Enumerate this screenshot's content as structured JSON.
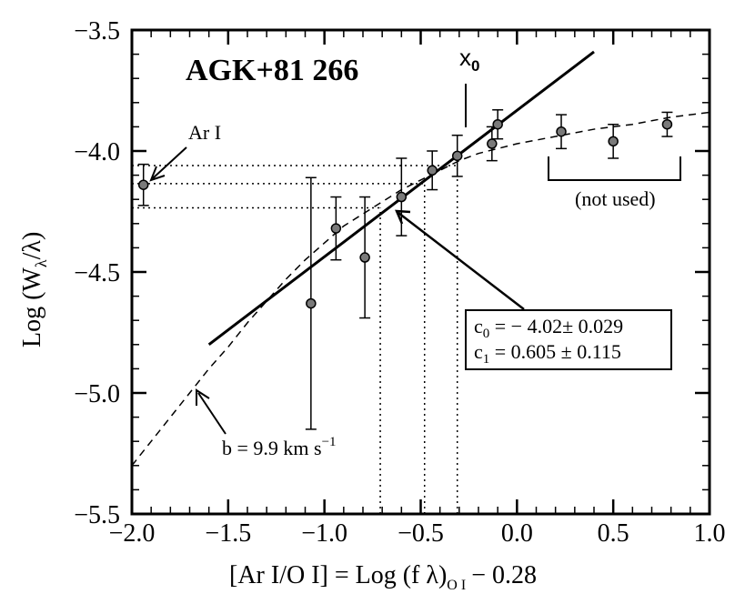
{
  "chart_data": {
    "type": "scatter",
    "title": "AGK+81 266",
    "xlabel": {
      "main": "[Ar I/O I] = Log (f  λ)",
      "sub": "O I",
      "tail": "− 0.28"
    },
    "ylabel": {
      "pre": "Log (W",
      "sub": "λ",
      "post": "/λ)"
    },
    "xlim": [
      -2.0,
      1.0
    ],
    "ylim": [
      -5.5,
      -3.5
    ],
    "xticks": [
      -2.0,
      -1.5,
      -1.0,
      -0.5,
      0.0,
      0.5,
      1.0
    ],
    "xtick_labels": [
      "−2.0",
      "−1.5",
      "−1.0",
      "−0.5",
      "0.0",
      "0.5",
      "1.0"
    ],
    "yticks": [
      -5.5,
      -5.0,
      -4.5,
      -4.0,
      -3.5
    ],
    "ytick_labels": [
      "−5.5",
      "−5.0",
      "−4.5",
      "−4.0",
      "−3.5"
    ],
    "points": [
      {
        "x": -1.94,
        "y": -4.14,
        "err": 0.085
      },
      {
        "x": -1.07,
        "y": -4.63,
        "err": 0.52
      },
      {
        "x": -0.94,
        "y": -4.32,
        "err": 0.13
      },
      {
        "x": -0.79,
        "y": -4.44,
        "err": 0.25
      },
      {
        "x": -0.6,
        "y": -4.19,
        "err": 0.16
      },
      {
        "x": -0.44,
        "y": -4.08,
        "err": 0.08
      },
      {
        "x": -0.31,
        "y": -4.02,
        "err": 0.085
      },
      {
        "x": -0.13,
        "y": -3.97,
        "err": 0.07
      },
      {
        "x": -0.1,
        "y": -3.89,
        "err": 0.06
      },
      {
        "x": 0.23,
        "y": -3.92,
        "err": 0.07
      },
      {
        "x": 0.5,
        "y": -3.96,
        "err": 0.07
      },
      {
        "x": 0.78,
        "y": -3.89,
        "err": 0.05
      }
    ],
    "fit_line": {
      "x": [
        -1.6,
        0.4
      ],
      "y": [
        -4.8,
        -3.59
      ],
      "style": "solid"
    },
    "curve_of_growth": {
      "style": "dashed",
      "x": [
        -2.0,
        -1.9,
        -1.8,
        -1.7,
        -1.6,
        -1.5,
        -1.4,
        -1.3,
        -1.2,
        -1.1,
        -1.0,
        -0.9,
        -0.8,
        -0.7,
        -0.6,
        -0.5,
        -0.4,
        -0.3,
        -0.2,
        -0.1,
        0.0,
        0.2,
        0.4,
        0.6,
        0.8,
        1.0
      ],
      "y": [
        -5.3,
        -5.2,
        -5.1,
        -5.0,
        -4.9,
        -4.81,
        -4.71,
        -4.62,
        -4.53,
        -4.45,
        -4.38,
        -4.31,
        -4.26,
        -4.21,
        -4.16,
        -4.12,
        -4.08,
        -4.04,
        -4.01,
        -3.99,
        -3.97,
        -3.94,
        -3.91,
        -3.89,
        -3.86,
        -3.84
      ]
    },
    "guide_lines": {
      "style": "dotted",
      "horizontal": [
        {
          "y": -4.06,
          "x_from": -2.0,
          "x_to": -0.31
        },
        {
          "y": -4.135,
          "x_from": -2.0,
          "x_to": -0.48
        },
        {
          "y": -4.235,
          "x_from": -2.0,
          "x_to": -0.71
        }
      ],
      "vertical": [
        {
          "x": -0.31,
          "y_from": -5.5,
          "y_to": -4.06
        },
        {
          "x": -0.48,
          "y_from": -5.5,
          "y_to": -4.135
        },
        {
          "x": -0.71,
          "y_from": -5.5,
          "y_to": -4.235
        }
      ]
    },
    "annotations": {
      "ar_label": "Ar I",
      "x0_label": "x",
      "x0_sub": "0",
      "not_used_label": "(not used)",
      "b_label_main": "b = 9.9 km s",
      "b_label_sup": "−1",
      "fit_box": {
        "c0_pre": "c",
        "c0_sub": "0",
        "c0_rest": " =  − 4.02± 0.029",
        "c1_pre": "c",
        "c1_sub": "1",
        "c1_rest": " = 0.605 ± 0.115"
      }
    }
  }
}
